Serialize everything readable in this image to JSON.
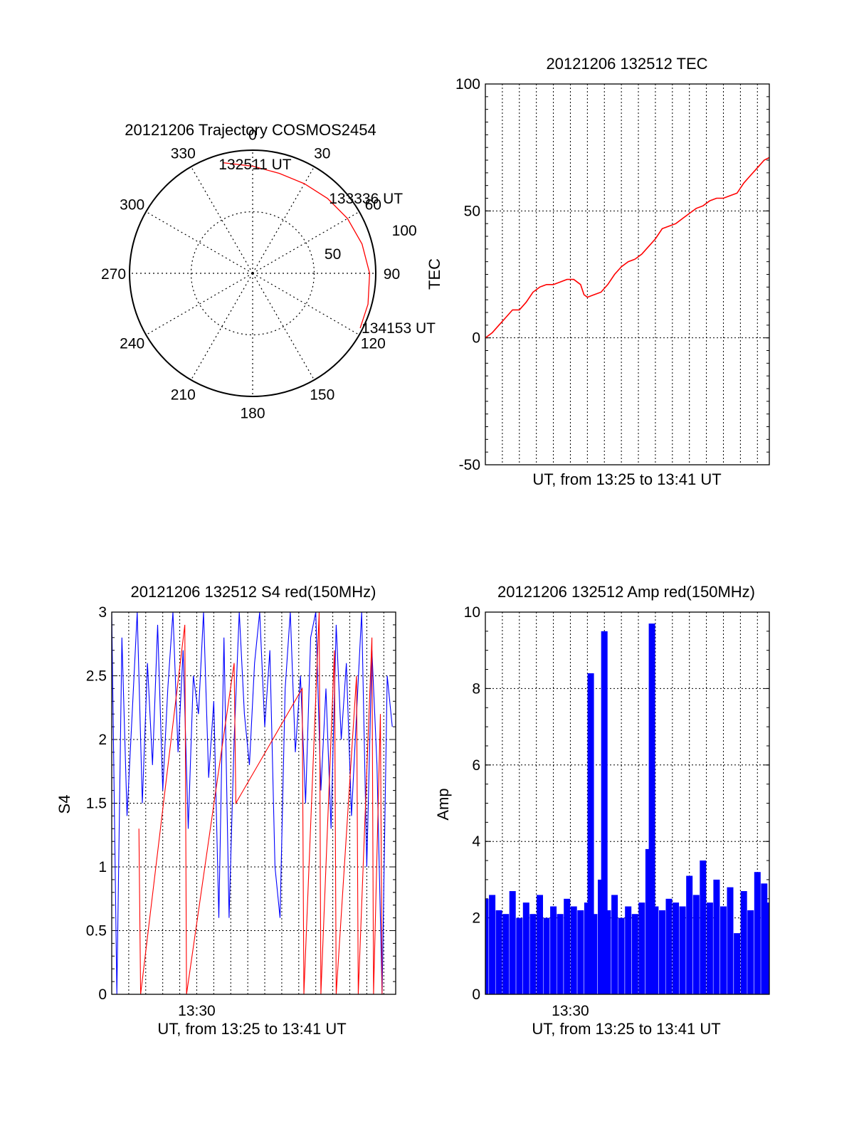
{
  "colors": {
    "red": "#ff0000",
    "blue": "#0000ff",
    "axis": "#000000",
    "grid": "#000000",
    "background": "#ffffff"
  },
  "chart_data": [
    {
      "type": "polar",
      "title": "20121206 Trajectory COSMOS2454",
      "angular_ticks": [
        "0",
        "30",
        "60",
        "90",
        "120",
        "150",
        "180",
        "210",
        "240",
        "270",
        "300",
        "330"
      ],
      "radial_tick_labels": [
        "50",
        "100"
      ],
      "rlim": [
        0,
        100
      ],
      "grid": true,
      "series": [
        {
          "color": "red",
          "azimuth": [
            -15,
            0,
            15,
            30,
            45,
            60,
            75,
            90,
            105,
            117
          ],
          "radius": [
            93,
            87,
            84,
            84,
            86,
            89,
            92,
            95,
            97,
            98
          ]
        }
      ],
      "annotations": [
        {
          "text": "132511 UT",
          "azimuth": -18,
          "radius": 93
        },
        {
          "text": "133336 UT",
          "azimuth": 45,
          "radius": 86
        },
        {
          "text": "134153 UT",
          "azimuth": 117,
          "radius": 98
        }
      ]
    },
    {
      "type": "line",
      "title": "20121206 132512 TEC",
      "xlabel": "UT, from 13:25 to 13:41 UT",
      "ylabel": "TEC",
      "xlim_minutes": [
        0,
        16.7
      ],
      "ylim": [
        -50,
        100
      ],
      "yticks": [
        "-50",
        "0",
        "50",
        "100"
      ],
      "grid": true,
      "series": [
        {
          "color": "red",
          "x": [
            0.0,
            0.4,
            0.8,
            1.2,
            1.6,
            2.0,
            2.4,
            2.8,
            3.2,
            3.6,
            4.0,
            4.4,
            4.8,
            5.2,
            5.6,
            5.8,
            6.0,
            6.4,
            6.8,
            7.2,
            7.6,
            8.0,
            8.4,
            8.8,
            9.2,
            9.6,
            10.0,
            10.4,
            10.8,
            11.2,
            11.6,
            12.0,
            12.4,
            12.8,
            13.2,
            13.6,
            14.0,
            14.4,
            14.8,
            15.2,
            15.6,
            16.0,
            16.4,
            16.7
          ],
          "y": [
            0,
            2,
            5,
            8,
            11,
            11,
            14,
            18,
            20,
            21,
            21,
            22,
            23,
            23,
            21,
            17,
            16,
            17,
            18,
            21,
            25,
            28,
            30,
            31,
            33,
            36,
            39,
            43,
            44,
            45,
            47,
            49,
            51,
            52,
            54,
            55,
            55,
            56,
            57,
            61,
            64,
            67,
            70,
            71
          ]
        }
      ]
    },
    {
      "type": "line",
      "title": "20121206 132512 S4 red(150MHz)",
      "xlabel": "UT, from 13:25 to 13:41 UT",
      "ylabel": "S4",
      "xlim_minutes": [
        0,
        16.7
      ],
      "ylim": [
        0,
        3
      ],
      "yticks": [
        "0",
        "0.5",
        "1",
        "1.5",
        "2",
        "2.5",
        "3"
      ],
      "xticks": [
        "13:30"
      ],
      "grid": true,
      "series": [
        {
          "color": "blue",
          "x": [
            0.0,
            0.3,
            0.6,
            0.9,
            1.2,
            1.5,
            1.8,
            2.1,
            2.4,
            2.7,
            3.0,
            3.3,
            3.6,
            3.9,
            4.2,
            4.5,
            4.8,
            5.1,
            5.4,
            5.7,
            6.0,
            6.3,
            6.6,
            6.9,
            7.2,
            7.5,
            7.8,
            8.1,
            8.4,
            8.7,
            9.0,
            9.3,
            9.6,
            9.9,
            10.2,
            10.5,
            10.8,
            11.1,
            11.4,
            11.7,
            12.0,
            12.3,
            12.6,
            12.9,
            13.2,
            13.5,
            13.8,
            14.1,
            14.4,
            14.7,
            15.0,
            15.3,
            15.6,
            15.9,
            16.2,
            16.5
          ],
          "y": [
            3.0,
            0.0,
            2.8,
            1.4,
            2.2,
            3.0,
            1.5,
            2.6,
            1.8,
            2.9,
            1.6,
            2.4,
            3.0,
            1.9,
            2.7,
            1.3,
            2.5,
            2.2,
            3.0,
            1.7,
            2.3,
            0.6,
            2.8,
            0.6,
            2.0,
            3.0,
            2.2,
            1.8,
            2.6,
            3.0,
            2.1,
            2.7,
            1.0,
            0.6,
            2.4,
            3.0,
            1.9,
            2.5,
            1.5,
            2.8,
            3.0,
            1.6,
            2.4,
            1.3,
            2.9,
            2.0,
            2.6,
            1.4,
            2.2,
            3.0,
            1.0,
            2.7,
            1.8,
            0.0,
            2.5,
            2.1
          ]
        },
        {
          "color": "red",
          "x": [
            1.6,
            1.7,
            4.3,
            4.4,
            7.2,
            7.3,
            11.2,
            11.3,
            12.2,
            12.3,
            13.1,
            13.2,
            14.4,
            14.5,
            15.3,
            15.4,
            15.8,
            15.9
          ],
          "y": [
            1.3,
            0.0,
            2.9,
            0.0,
            2.6,
            1.5,
            2.4,
            0.0,
            3.0,
            0.0,
            2.7,
            0.0,
            2.5,
            0.0,
            2.8,
            0.0,
            2.2,
            0.0
          ]
        }
      ]
    },
    {
      "type": "bar",
      "title": "20121206 132512 Amp red(150MHz)",
      "xlabel": "UT, from 13:25 to 13:41 UT",
      "ylabel": "Amp",
      "xlim_minutes": [
        0,
        16.7
      ],
      "ylim": [
        0,
        10
      ],
      "yticks": [
        "0",
        "2",
        "4",
        "6",
        "8",
        "10"
      ],
      "xticks": [
        "13:30"
      ],
      "grid": true,
      "series": [
        {
          "color": "blue",
          "x": [
            0.0,
            0.4,
            0.8,
            1.2,
            1.6,
            2.0,
            2.4,
            2.8,
            3.2,
            3.6,
            4.0,
            4.4,
            4.8,
            5.2,
            5.6,
            6.0,
            6.2,
            6.4,
            6.8,
            7.0,
            7.2,
            7.6,
            8.0,
            8.4,
            8.8,
            9.2,
            9.6,
            9.8,
            10.0,
            10.4,
            10.8,
            11.2,
            11.6,
            12.0,
            12.4,
            12.8,
            13.2,
            13.6,
            14.0,
            14.4,
            14.8,
            15.2,
            15.6,
            16.0,
            16.4,
            16.6
          ],
          "y": [
            2.5,
            2.6,
            2.2,
            2.1,
            2.7,
            2.0,
            2.4,
            2.1,
            2.6,
            2.0,
            2.3,
            2.1,
            2.5,
            2.3,
            2.2,
            2.4,
            8.4,
            2.1,
            3.0,
            9.5,
            2.2,
            2.6,
            2.0,
            2.3,
            2.1,
            2.4,
            3.8,
            9.7,
            2.3,
            2.2,
            2.5,
            2.4,
            2.3,
            3.1,
            2.6,
            3.5,
            2.4,
            3.0,
            2.3,
            2.8,
            1.6,
            2.7,
            2.2,
            3.2,
            2.9,
            2.4
          ]
        }
      ]
    }
  ]
}
